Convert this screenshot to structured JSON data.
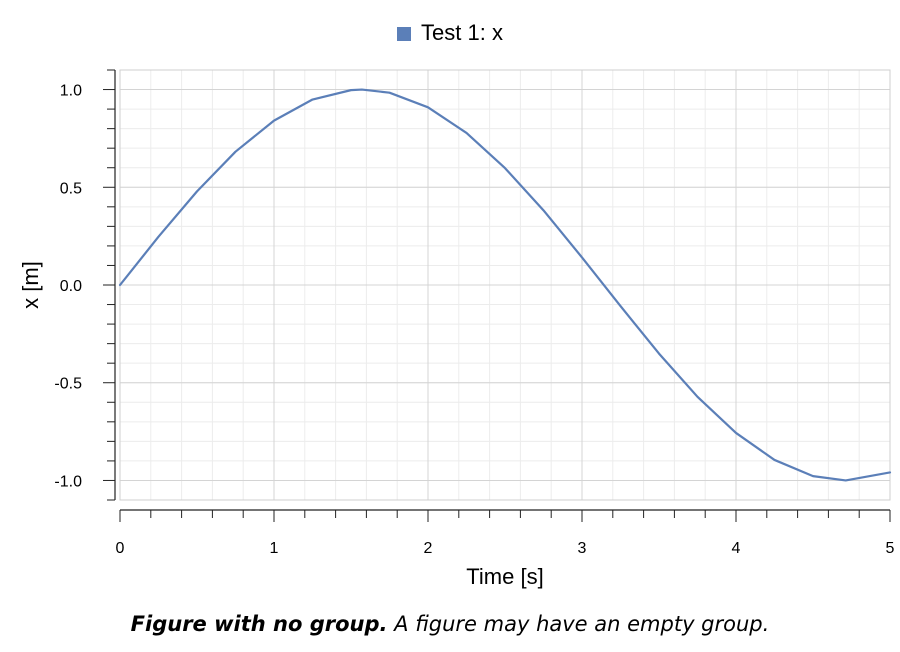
{
  "chart_data": {
    "type": "line",
    "xlabel": "Time [s]",
    "ylabel": "x [m]",
    "xlim": [
      0,
      5
    ],
    "ylim": [
      -1.1,
      1.1
    ],
    "xticks": [
      "0",
      "1",
      "2",
      "3",
      "4",
      "5"
    ],
    "yticks": [
      "1.0",
      "0.5",
      "0.0",
      "-0.5",
      "-1.0"
    ],
    "grid": true,
    "legend_position": "top-center",
    "series": [
      {
        "name": "Test 1: x",
        "color": "#5b7fb8",
        "x": [
          0,
          0.25,
          0.5,
          0.75,
          1.0,
          1.25,
          1.5,
          1.5708,
          1.75,
          2.0,
          2.25,
          2.5,
          2.75,
          3.0,
          3.25,
          3.5,
          3.75,
          4.0,
          4.25,
          4.5,
          4.7124,
          5.0
        ],
        "y": [
          0.0,
          0.247,
          0.479,
          0.682,
          0.841,
          0.949,
          0.997,
          1.0,
          0.984,
          0.909,
          0.778,
          0.598,
          0.382,
          0.141,
          -0.108,
          -0.351,
          -0.572,
          -0.757,
          -0.895,
          -0.978,
          -1.0,
          -0.959
        ]
      }
    ]
  },
  "caption": {
    "bold": "Figure with no group.",
    "text": "A figure may have an empty group."
  }
}
